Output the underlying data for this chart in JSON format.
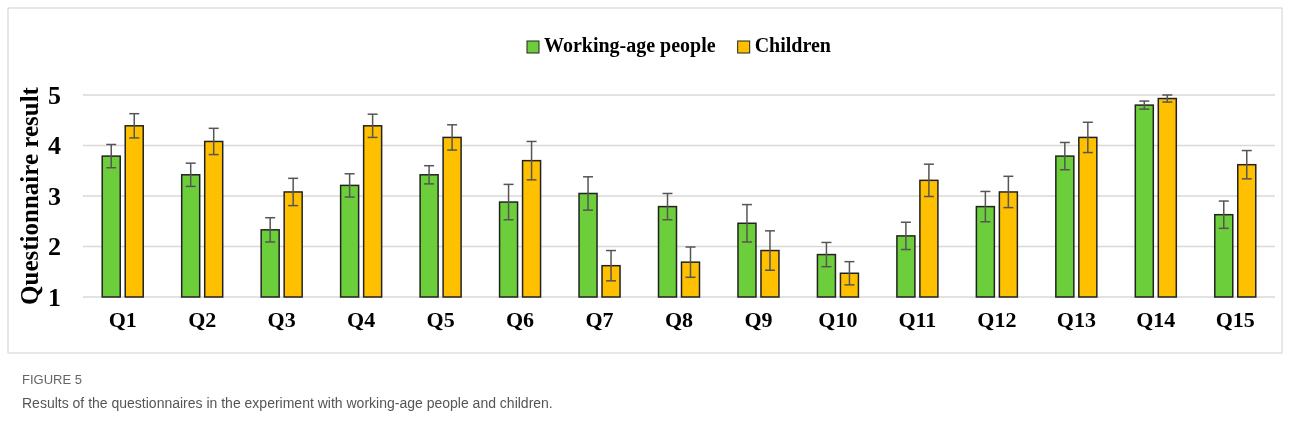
{
  "chart_data": {
    "type": "bar",
    "ylabel": "Questionnaire result",
    "categories": [
      "Q1",
      "Q2",
      "Q3",
      "Q4",
      "Q5",
      "Q6",
      "Q7",
      "Q8",
      "Q9",
      "Q10",
      "Q11",
      "Q12",
      "Q13",
      "Q14",
      "Q15"
    ],
    "series": [
      {
        "name": "Working-age people",
        "color": "#6dce3c",
        "values": [
          3.79,
          3.42,
          2.33,
          3.21,
          3.42,
          2.88,
          3.05,
          2.79,
          2.46,
          1.84,
          2.21,
          2.79,
          3.79,
          4.8,
          2.63
        ],
        "errors": [
          0.23,
          0.23,
          0.24,
          0.23,
          0.18,
          0.35,
          0.33,
          0.26,
          0.37,
          0.24,
          0.27,
          0.3,
          0.27,
          0.08,
          0.27
        ]
      },
      {
        "name": "Children",
        "color": "#ffc000",
        "values": [
          4.39,
          4.08,
          3.08,
          4.39,
          4.16,
          3.7,
          1.62,
          1.69,
          1.92,
          1.47,
          3.31,
          3.08,
          4.16,
          4.93,
          3.62
        ],
        "errors": [
          0.24,
          0.26,
          0.27,
          0.23,
          0.25,
          0.38,
          0.3,
          0.3,
          0.39,
          0.23,
          0.32,
          0.31,
          0.3,
          0.07,
          0.28
        ]
      }
    ],
    "ylim": [
      1,
      5
    ],
    "yticks": [
      1,
      2,
      3,
      4,
      5
    ],
    "grid": "y",
    "legend": "top",
    "annotations": [
      "FIGURE 5",
      "Results of the questionnaires in the experiment with working-age people and children."
    ]
  }
}
